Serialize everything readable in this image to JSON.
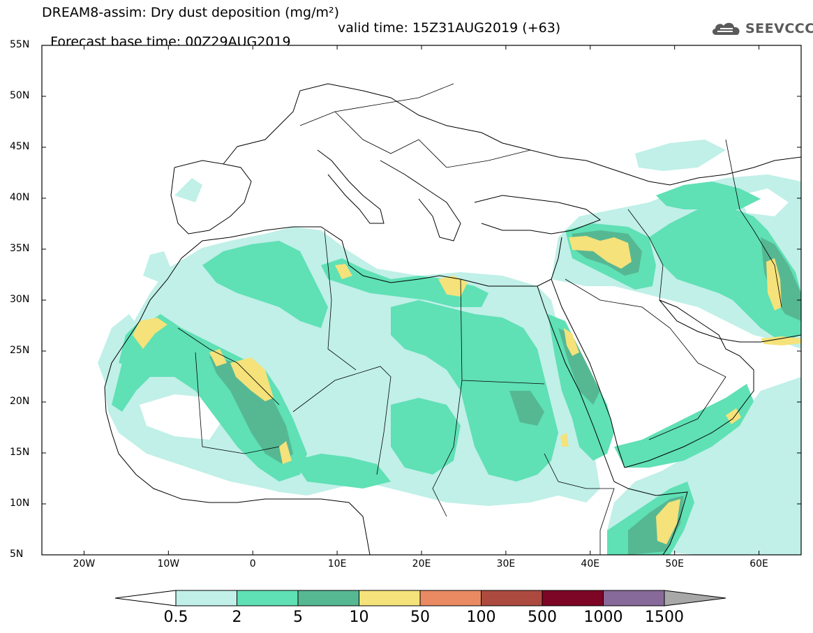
{
  "header": {
    "title_line1": "DREAM8-assim: Dry dust deposition (mg/m²)",
    "base_time": "Forecast base time: 00Z29AUG2019",
    "valid_time": "valid time: 15Z31AUG2019 (+63)"
  },
  "logo": {
    "icon": "cloud-icon",
    "name": "SEEVCCC"
  },
  "map": {
    "lat_labels": [
      "55N",
      "50N",
      "45N",
      "40N",
      "35N",
      "30N",
      "25N",
      "20N",
      "15N",
      "10N",
      "5N"
    ],
    "lon_labels": [
      "20W",
      "10W",
      "0",
      "10E",
      "20E",
      "30E",
      "40E",
      "50E",
      "60E"
    ],
    "lat_range": [
      5,
      55
    ],
    "lon_range": [
      -25,
      65
    ],
    "land_color": "#ffffff",
    "border_color": "#000000"
  },
  "legend": {
    "labels": [
      "0.5",
      "2",
      "5",
      "10",
      "50",
      "100",
      "500",
      "1000",
      "1500"
    ],
    "colors": [
      "#c0f0e8",
      "#5fe0b5",
      "#56b893",
      "#f5e27a",
      "#e98a63",
      "#ad4a40",
      "#7d0525",
      "#876a9a",
      "#a8a8a8"
    ]
  }
}
